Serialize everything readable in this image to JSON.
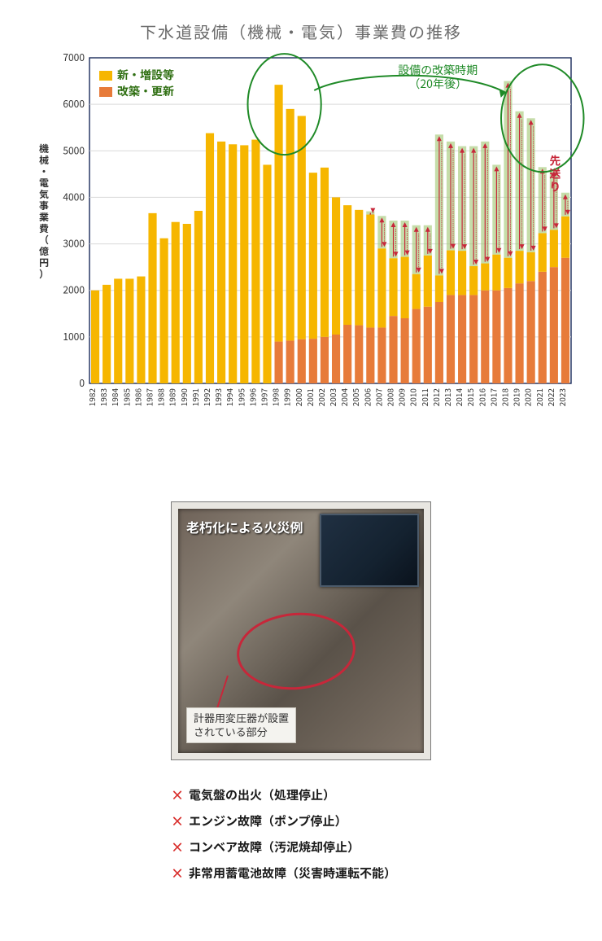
{
  "chart": {
    "title": "下水道設備（機械・電気）事業費の推移",
    "y_label": "機械・電気事業費（億円）",
    "type": "stacked-bar",
    "background_color": "#ffffff",
    "plot_border_color": "#1a2a5a",
    "grid_color": "#d9d9d9",
    "ylim": [
      0,
      7000
    ],
    "ytick_step": 1000,
    "yticks": [
      0,
      1000,
      2000,
      3000,
      4000,
      5000,
      6000,
      7000
    ],
    "x_fontsize": 10,
    "y_fontsize": 12,
    "title_fontsize": 20,
    "title_color": "#6b6b6b",
    "series": {
      "new": {
        "label": "新・増設等",
        "color": "#f6b600"
      },
      "renew": {
        "label": "改築・更新",
        "color": "#e77b3a"
      }
    },
    "annotation_green": {
      "line1": "設備の改築時期",
      "line2": "（20年後）",
      "color": "#1f8a27",
      "circle_color": "#1f8a27",
      "left_circle_range": [
        1997,
        2000
      ],
      "right_circle_range": [
        2019,
        2023
      ]
    },
    "annotation_red": {
      "label1": "先",
      "label2": "送",
      "label3": "り",
      "color": "#c7273a",
      "arrow_color": "#c7273a"
    },
    "ghost": {
      "fill_top": "#9fc66f",
      "fill_alpha": 0.6
    },
    "years": [
      1982,
      1983,
      1984,
      1985,
      1986,
      1987,
      1988,
      1989,
      1990,
      1991,
      1992,
      1993,
      1994,
      1995,
      1996,
      1997,
      1998,
      1999,
      2000,
      2001,
      2002,
      2003,
      2004,
      2005,
      2006,
      2007,
      2008,
      2009,
      2010,
      2011,
      2012,
      2013,
      2014,
      2015,
      2016,
      2017,
      2018,
      2019,
      2020,
      2021,
      2022,
      2023
    ],
    "values_new": [
      2000,
      2120,
      2250,
      2250,
      2300,
      3660,
      3120,
      3470,
      3430,
      3710,
      5380,
      5200,
      5140,
      5120,
      5240,
      4700,
      6420,
      5900,
      5750,
      4530,
      4640,
      4000,
      3830,
      3730,
      3630,
      2900,
      2690,
      2720,
      2350,
      2750,
      2320,
      2860,
      2850,
      2520,
      2580,
      2770,
      2700,
      2850,
      2820,
      3230,
      3300,
      3590
    ],
    "values_renew": [
      0,
      0,
      0,
      0,
      0,
      0,
      0,
      0,
      0,
      0,
      0,
      0,
      0,
      0,
      0,
      0,
      900,
      920,
      950,
      960,
      1000,
      1050,
      1260,
      1250,
      1200,
      1200,
      1450,
      1400,
      1600,
      1650,
      1750,
      1900,
      1900,
      1900,
      2000,
      2000,
      2050,
      2150,
      2200,
      2400,
      2500,
      2700
    ],
    "ghost_total": [
      0,
      0,
      0,
      0,
      0,
      0,
      0,
      0,
      0,
      0,
      0,
      0,
      0,
      0,
      0,
      0,
      0,
      0,
      0,
      0,
      0,
      0,
      0,
      0,
      3700,
      3600,
      3500,
      3500,
      3400,
      3400,
      5350,
      5200,
      5100,
      5100,
      5200,
      4700,
      6500,
      5850,
      5700,
      4650,
      4600,
      4100
    ],
    "bar_width_ratio": 0.72
  },
  "photo_panel": {
    "title": "老朽化による火災例",
    "callout_line1": "計器用変圧器が設置",
    "callout_line2": "されている部分",
    "border_color": "#7a7a7a",
    "ellipse_color": "#c7273a"
  },
  "failures": {
    "marker": "×",
    "marker_color": "#d9302e",
    "items": [
      "電気盤の出火（処理停止）",
      "エンジン故障（ポンプ停止）",
      "コンベア故障（汚泥焼却停止）",
      "非常用蓄電池故障（災害時運転不能）"
    ]
  }
}
